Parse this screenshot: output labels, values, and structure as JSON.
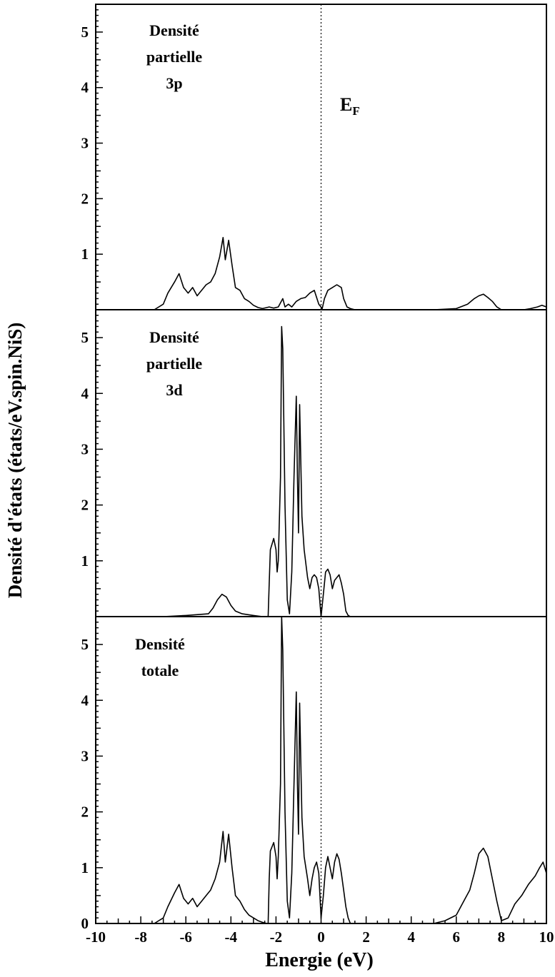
{
  "chart_data": {
    "type": "line",
    "ylabel": "Densité d'états (états/eV.spin.NiS)",
    "xlabel": "Energie (eV)",
    "xlim": [
      -10,
      10
    ],
    "x_ticks": [
      "-10",
      "-8",
      "-6",
      "-4",
      "-2",
      "0",
      "2",
      "4",
      "6",
      "8",
      "10"
    ],
    "fermi_level": {
      "x": 0,
      "label": "E",
      "label_sub": "F"
    },
    "grid": false,
    "panels": [
      {
        "label_lines": [
          "Densité",
          "partielle",
          "3p"
        ],
        "ylim": [
          0,
          5.5
        ],
        "y_ticks": [
          "1",
          "2",
          "3",
          "4",
          "5"
        ],
        "series": [
          {
            "x": [
              -7.4,
              -7.0,
              -6.8,
              -6.5,
              -6.3,
              -6.1,
              -5.9,
              -5.7,
              -5.5,
              -5.3,
              -5.1,
              -4.9,
              -4.7,
              -4.5,
              -4.35,
              -4.25,
              -4.1,
              -3.95,
              -3.8,
              -3.6,
              -3.4,
              -3.2,
              -3.0,
              -2.8,
              -2.6,
              -2.3,
              -2.1,
              -1.9,
              -1.7,
              -1.6,
              -1.45,
              -1.3,
              -1.1,
              -0.9,
              -0.7,
              -0.5,
              -0.3,
              -0.1,
              0.05,
              0.15,
              0.3,
              0.5,
              0.7,
              0.9,
              1.0,
              1.15,
              1.3,
              1.5,
              2.0,
              3.0,
              4.0,
              5.0,
              6.0,
              6.5,
              6.8,
              7.0,
              7.2,
              7.4,
              7.6,
              7.8,
              8.0,
              9.0,
              9.3,
              9.6,
              9.8,
              10.0
            ],
            "y": [
              0.0,
              0.1,
              0.3,
              0.5,
              0.65,
              0.4,
              0.3,
              0.4,
              0.25,
              0.35,
              0.45,
              0.5,
              0.65,
              0.95,
              1.3,
              0.9,
              1.25,
              0.8,
              0.4,
              0.35,
              0.2,
              0.15,
              0.08,
              0.04,
              0.02,
              0.05,
              0.03,
              0.05,
              0.2,
              0.05,
              0.1,
              0.05,
              0.15,
              0.2,
              0.22,
              0.3,
              0.35,
              0.1,
              0.02,
              0.2,
              0.35,
              0.4,
              0.45,
              0.4,
              0.2,
              0.05,
              0.02,
              0.0,
              0.0,
              0.0,
              0.0,
              0.0,
              0.02,
              0.1,
              0.2,
              0.25,
              0.28,
              0.22,
              0.15,
              0.05,
              0.0,
              0.0,
              0.02,
              0.05,
              0.08,
              0.05
            ]
          }
        ]
      },
      {
        "label_lines": [
          "Densité",
          "partielle",
          "3d"
        ],
        "ylim": [
          0,
          5.5
        ],
        "y_ticks": [
          "1",
          "2",
          "3",
          "4",
          "5"
        ],
        "series": [
          {
            "x": [
              -10.0,
              -7.0,
              -6.0,
              -5.0,
              -4.8,
              -4.6,
              -4.4,
              -4.2,
              -4.0,
              -3.8,
              -3.5,
              -3.0,
              -2.6,
              -2.35,
              -2.3,
              -2.25,
              -2.1,
              -2.0,
              -1.95,
              -1.9,
              -1.8,
              -1.75,
              -1.7,
              -1.6,
              -1.5,
              -1.4,
              -1.3,
              -1.2,
              -1.1,
              -1.05,
              -1.0,
              -0.95,
              -0.85,
              -0.75,
              -0.6,
              -0.5,
              -0.4,
              -0.3,
              -0.2,
              -0.1,
              0.0,
              0.1,
              0.2,
              0.3,
              0.4,
              0.5,
              0.6,
              0.7,
              0.8,
              0.9,
              1.0,
              1.1,
              1.2,
              1.3,
              2.0,
              10.0
            ],
            "y": [
              0.0,
              0.0,
              0.02,
              0.05,
              0.15,
              0.3,
              0.4,
              0.35,
              0.2,
              0.1,
              0.05,
              0.02,
              0.0,
              0.0,
              0.6,
              1.2,
              1.4,
              1.2,
              0.8,
              1.0,
              2.5,
              5.2,
              4.8,
              2.0,
              0.3,
              0.05,
              0.8,
              2.5,
              3.95,
              2.5,
              1.5,
              3.8,
              1.8,
              1.2,
              0.7,
              0.5,
              0.7,
              0.75,
              0.7,
              0.5,
              0.0,
              0.4,
              0.8,
              0.85,
              0.75,
              0.5,
              0.65,
              0.7,
              0.75,
              0.6,
              0.4,
              0.1,
              0.02,
              0.0,
              0.0,
              0.0
            ]
          }
        ]
      },
      {
        "label_lines": [
          "Densité",
          "totale"
        ],
        "ylim": [
          0,
          5.5
        ],
        "y_ticks": [
          "0",
          "1",
          "2",
          "3",
          "4",
          "5"
        ],
        "series": [
          {
            "x": [
              -7.4,
              -7.0,
              -6.8,
              -6.5,
              -6.3,
              -6.1,
              -5.9,
              -5.7,
              -5.5,
              -5.3,
              -5.1,
              -4.9,
              -4.7,
              -4.5,
              -4.35,
              -4.25,
              -4.1,
              -3.95,
              -3.8,
              -3.6,
              -3.4,
              -3.2,
              -3.0,
              -2.8,
              -2.6,
              -2.4,
              -2.35,
              -2.3,
              -2.25,
              -2.1,
              -2.0,
              -1.95,
              -1.9,
              -1.8,
              -1.75,
              -1.7,
              -1.6,
              -1.5,
              -1.4,
              -1.3,
              -1.2,
              -1.1,
              -1.05,
              -1.0,
              -0.95,
              -0.85,
              -0.75,
              -0.6,
              -0.5,
              -0.4,
              -0.3,
              -0.2,
              -0.1,
              0.0,
              0.1,
              0.2,
              0.3,
              0.4,
              0.5,
              0.6,
              0.7,
              0.8,
              0.9,
              1.0,
              1.1,
              1.2,
              1.3,
              2.0,
              4.0,
              5.0,
              5.5,
              6.0,
              6.2,
              6.4,
              6.6,
              6.8,
              7.0,
              7.2,
              7.4,
              7.6,
              7.8,
              8.0,
              8.3,
              8.6,
              8.9,
              9.2,
              9.5,
              9.7,
              9.85,
              10.0
            ],
            "y": [
              0.0,
              0.1,
              0.3,
              0.55,
              0.7,
              0.45,
              0.35,
              0.45,
              0.3,
              0.4,
              0.5,
              0.6,
              0.8,
              1.1,
              1.65,
              1.1,
              1.6,
              1.0,
              0.5,
              0.4,
              0.25,
              0.15,
              0.1,
              0.05,
              0.02,
              0.0,
              0.0,
              0.8,
              1.3,
              1.45,
              1.2,
              0.8,
              1.2,
              2.5,
              5.5,
              4.9,
              2.0,
              0.4,
              0.1,
              0.9,
              2.5,
              4.15,
              2.5,
              1.6,
              3.95,
              1.9,
              1.2,
              0.8,
              0.5,
              0.8,
              1.0,
              1.1,
              0.9,
              0.1,
              0.5,
              1.0,
              1.2,
              1.0,
              0.8,
              1.1,
              1.25,
              1.15,
              0.9,
              0.6,
              0.3,
              0.1,
              0.0,
              0.0,
              0.0,
              0.0,
              0.05,
              0.15,
              0.3,
              0.45,
              0.6,
              0.9,
              1.25,
              1.35,
              1.2,
              0.8,
              0.4,
              0.05,
              0.1,
              0.35,
              0.5,
              0.7,
              0.85,
              1.0,
              1.1,
              0.9
            ]
          }
        ]
      }
    ]
  }
}
